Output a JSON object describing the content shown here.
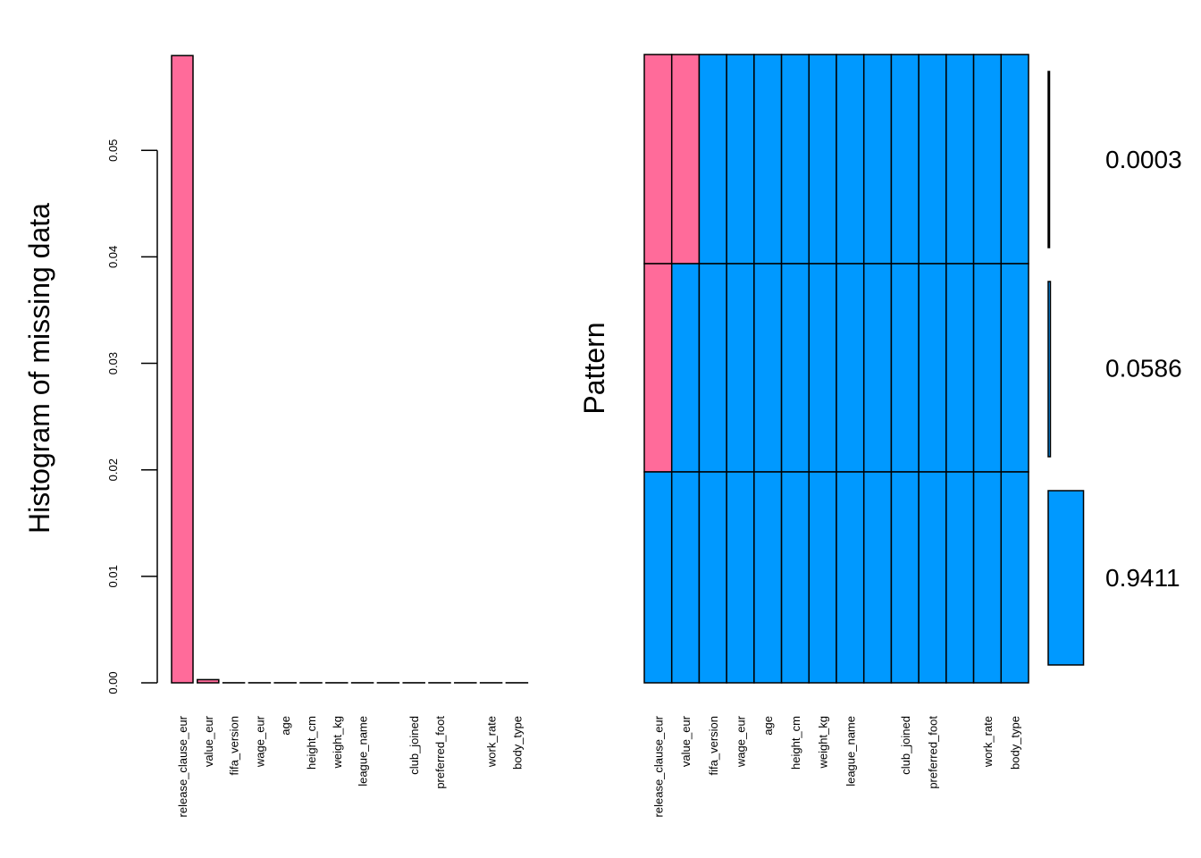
{
  "chart_data": [
    {
      "type": "bar",
      "ylabel": "Histogram of missing data",
      "xlabel": "",
      "categories": [
        "release_clause_eur",
        "value_eur",
        "fifa_version",
        "wage_eur",
        "age",
        "height_cm",
        "weight_kg",
        "league_name",
        "",
        "club_joined",
        "preferred_foot",
        "",
        "work_rate",
        "body_type"
      ],
      "values": [
        0.0589,
        0.0003,
        0,
        0,
        0,
        0,
        0,
        0,
        0,
        0,
        0,
        0,
        0,
        0
      ],
      "ylim": [
        0,
        0.059
      ],
      "yticks": [
        0.0,
        0.01,
        0.02,
        0.03,
        0.04,
        0.05
      ],
      "ytick_labels": [
        "0.00",
        "0.01",
        "0.02",
        "0.03",
        "0.04",
        "0.05"
      ],
      "bar_colors": [
        "#ff6b9a",
        "#ff6b9a",
        "#ffffff",
        "#ffffff",
        "#ffffff",
        "#ffffff",
        "#ffffff",
        "#ffffff",
        "#ffffff",
        "#ffffff",
        "#ffffff",
        "#ffffff",
        "#ffffff",
        "#ffffff"
      ],
      "grid": false
    },
    {
      "type": "heatmap",
      "ylabel": "Pattern",
      "columns": [
        "release_clause_eur",
        "value_eur",
        "fifa_version",
        "wage_eur",
        "age",
        "height_cm",
        "weight_kg",
        "league_name",
        "",
        "club_joined",
        "preferred_foot",
        "",
        "work_rate",
        "body_type"
      ],
      "patterns": [
        {
          "proportion": 0.0003,
          "label": "0.0003",
          "missing": [
            1,
            1,
            0,
            0,
            0,
            0,
            0,
            0,
            0,
            0,
            0,
            0,
            0,
            0
          ]
        },
        {
          "proportion": 0.0586,
          "label": "0.0586",
          "missing": [
            1,
            0,
            0,
            0,
            0,
            0,
            0,
            0,
            0,
            0,
            0,
            0,
            0,
            0
          ]
        },
        {
          "proportion": 0.9411,
          "label": "0.9411",
          "missing": [
            0,
            0,
            0,
            0,
            0,
            0,
            0,
            0,
            0,
            0,
            0,
            0,
            0,
            0
          ]
        }
      ],
      "missing_color": "#ff6b9a",
      "present_color": "#0099ff"
    }
  ]
}
